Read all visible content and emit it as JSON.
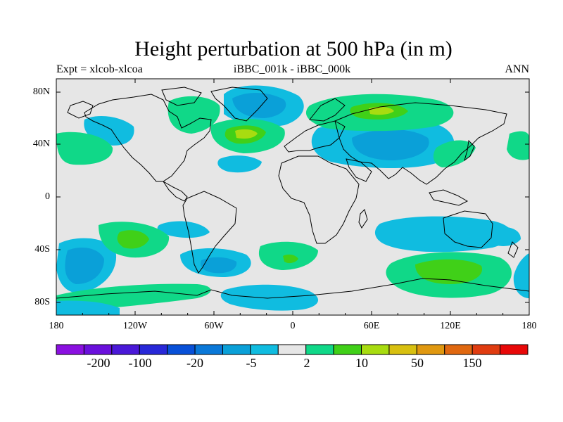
{
  "title": "Height perturbation at 500 hPa (in m)",
  "subtitle_left": "Expt = xlcob-xlcoa",
  "subtitle_center": "iBBC_001k - iBBC_000k",
  "subtitle_right": "ANN",
  "lat_labels": [
    "80N",
    "40N",
    "0",
    "40S",
    "80S"
  ],
  "lon_labels": [
    "180",
    "120W",
    "60W",
    "0",
    "60E",
    "120E",
    "180"
  ],
  "colorbar": {
    "colors": [
      "#8a10e0",
      "#6a10dc",
      "#4a18d8",
      "#2828d8",
      "#0850d8",
      "#0a78d8",
      "#0aa0d8",
      "#10bce0",
      "#e6e6e6",
      "#10d888",
      "#40d018",
      "#a8dc10",
      "#d8c010",
      "#e09810",
      "#e06810",
      "#e03c10",
      "#e80808"
    ],
    "labels": [
      "-200",
      "-100",
      "-20",
      "-5",
      "2",
      "10",
      "50",
      "150"
    ]
  },
  "map_colors": {
    "background": "#e6e6e6",
    "neg_light": "#10bce0",
    "neg_mid": "#0aa0d8",
    "neg_dark": "#0a78d8",
    "pos_light": "#10d888",
    "pos_mid": "#40d018",
    "pos_strong": "#a8dc10"
  }
}
